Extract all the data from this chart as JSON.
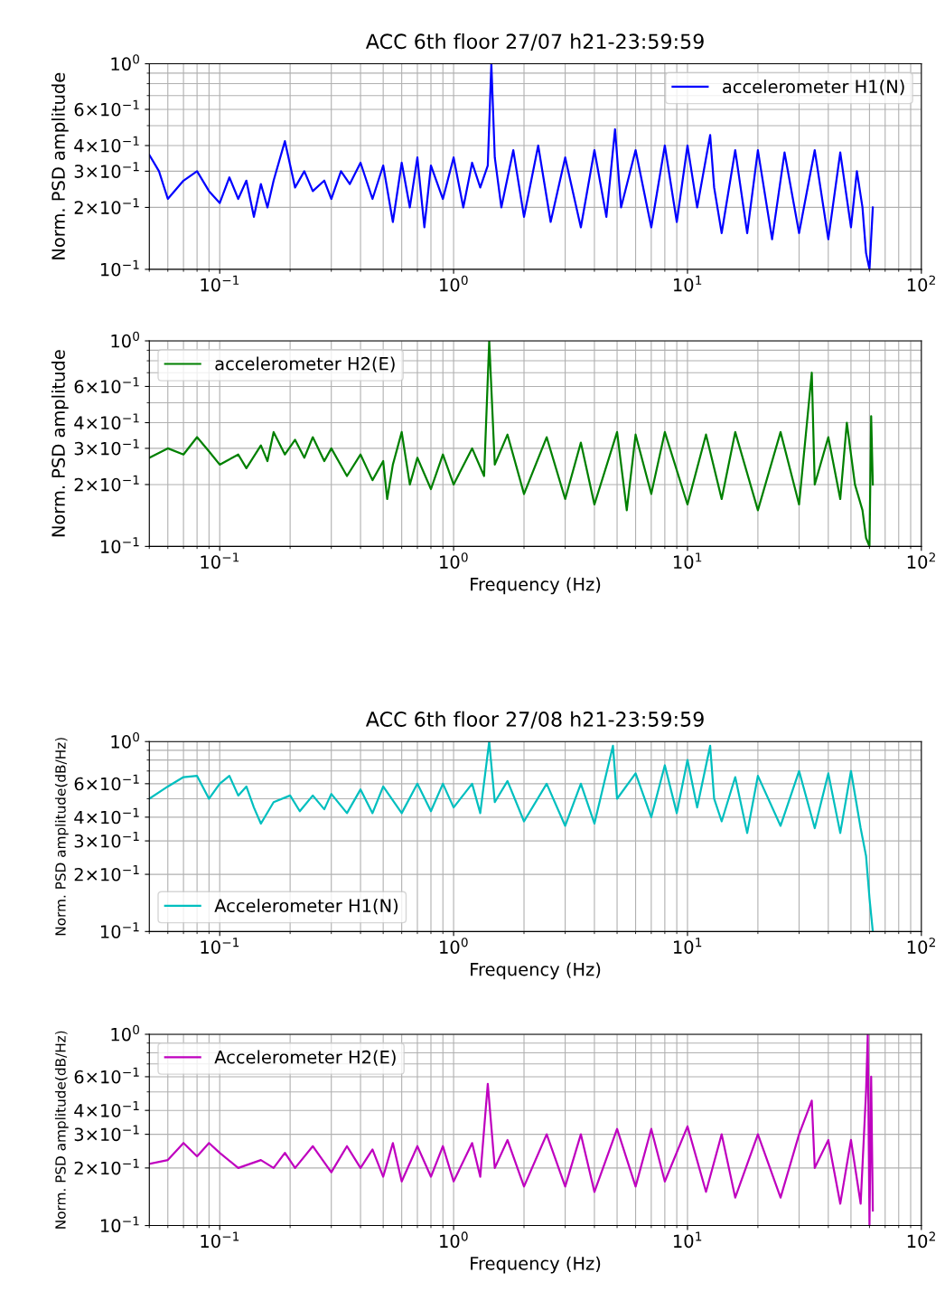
{
  "chart_data": [
    {
      "type": "line",
      "title": "ACC 6th floor 27/07 h21-23:59:59",
      "ylabel": "Norm. PSD amplitude",
      "log": "xy",
      "grid": true,
      "legend": "top right",
      "xlim": [
        0.05,
        100
      ],
      "ylim": [
        0.1,
        1
      ],
      "xticks": [
        {
          "value": 0.1,
          "label": "10$^{−1}$"
        },
        {
          "value": 1,
          "label": "10$^{0}$"
        },
        {
          "value": 10,
          "label": "10$^{1}$"
        },
        {
          "value": 100,
          "label": "10$^{2}$"
        }
      ],
      "yticks": [
        {
          "value": 0.1,
          "label": "10$^{−1}$"
        },
        {
          "value": 0.2,
          "label": "2×10$^{−1}$"
        },
        {
          "value": 0.3,
          "label": "3×10$^{−1}$"
        },
        {
          "value": 0.4,
          "label": "4×10$^{−1}$"
        },
        {
          "value": 0.6,
          "label": "6×10$^{−1}$"
        },
        {
          "value": 1,
          "label": "10$^{0}$"
        }
      ],
      "series": [
        {
          "name": "accelerometer H1(N)",
          "color": "#0000ff",
          "x": [
            0.05,
            0.055,
            0.06,
            0.07,
            0.08,
            0.09,
            0.1,
            0.11,
            0.12,
            0.13,
            0.14,
            0.15,
            0.16,
            0.17,
            0.19,
            0.21,
            0.23,
            0.25,
            0.28,
            0.3,
            0.33,
            0.36,
            0.4,
            0.45,
            0.5,
            0.55,
            0.6,
            0.65,
            0.7,
            0.75,
            0.8,
            0.9,
            1.0,
            1.1,
            1.2,
            1.3,
            1.4,
            1.45,
            1.5,
            1.6,
            1.8,
            2.0,
            2.3,
            2.6,
            3,
            3.5,
            4,
            4.5,
            4.9,
            5.2,
            6,
            7,
            8,
            9,
            10,
            11,
            12.5,
            13,
            14,
            16,
            18,
            20,
            23,
            26,
            30,
            35,
            40,
            45,
            50,
            53,
            56,
            58,
            60,
            62
          ],
          "values": [
            0.36,
            0.3,
            0.22,
            0.27,
            0.3,
            0.24,
            0.21,
            0.28,
            0.22,
            0.27,
            0.18,
            0.26,
            0.2,
            0.27,
            0.42,
            0.25,
            0.3,
            0.24,
            0.27,
            0.22,
            0.3,
            0.26,
            0.33,
            0.22,
            0.32,
            0.17,
            0.33,
            0.2,
            0.35,
            0.16,
            0.32,
            0.22,
            0.35,
            0.2,
            0.33,
            0.25,
            0.32,
            1.0,
            0.35,
            0.2,
            0.38,
            0.18,
            0.4,
            0.17,
            0.35,
            0.16,
            0.38,
            0.18,
            0.48,
            0.2,
            0.38,
            0.16,
            0.4,
            0.17,
            0.4,
            0.2,
            0.45,
            0.25,
            0.15,
            0.38,
            0.15,
            0.38,
            0.14,
            0.37,
            0.15,
            0.38,
            0.14,
            0.37,
            0.16,
            0.3,
            0.2,
            0.12,
            0.1,
            0.2
          ]
        }
      ]
    },
    {
      "type": "line",
      "xlabel": "Frequency (Hz)",
      "ylabel": "Norm. PSD amplitude",
      "log": "xy",
      "grid": true,
      "legend": "top left",
      "xlim": [
        0.05,
        100
      ],
      "ylim": [
        0.1,
        1
      ],
      "xticks": [
        {
          "value": 0.1,
          "label": "10$^{−1}$"
        },
        {
          "value": 1,
          "label": "10$^{0}$"
        },
        {
          "value": 10,
          "label": "10$^{1}$"
        },
        {
          "value": 100,
          "label": "10$^{2}$"
        }
      ],
      "yticks": [
        {
          "value": 0.1,
          "label": "10$^{−1}$"
        },
        {
          "value": 0.2,
          "label": "2×10$^{−1}$"
        },
        {
          "value": 0.3,
          "label": "3×10$^{−1}$"
        },
        {
          "value": 0.4,
          "label": "4×10$^{−1}$"
        },
        {
          "value": 0.6,
          "label": "6×10$^{−1}$"
        },
        {
          "value": 1,
          "label": "10$^{0}$"
        }
      ],
      "series": [
        {
          "name": "accelerometer H2(E)",
          "color": "#008000",
          "x": [
            0.05,
            0.06,
            0.07,
            0.08,
            0.09,
            0.1,
            0.12,
            0.13,
            0.15,
            0.16,
            0.17,
            0.19,
            0.21,
            0.23,
            0.25,
            0.28,
            0.3,
            0.35,
            0.4,
            0.45,
            0.5,
            0.52,
            0.55,
            0.6,
            0.65,
            0.7,
            0.8,
            0.9,
            1.0,
            1.2,
            1.35,
            1.42,
            1.5,
            1.7,
            2,
            2.5,
            3,
            3.5,
            4,
            5,
            5.5,
            6,
            7,
            8,
            10,
            12,
            14,
            16,
            20,
            25,
            30,
            34,
            35,
            40,
            45,
            48,
            52,
            56,
            58,
            60,
            61,
            62
          ],
          "values": [
            0.27,
            0.3,
            0.28,
            0.34,
            0.29,
            0.25,
            0.28,
            0.24,
            0.31,
            0.26,
            0.36,
            0.28,
            0.33,
            0.27,
            0.34,
            0.26,
            0.3,
            0.22,
            0.28,
            0.21,
            0.26,
            0.17,
            0.25,
            0.36,
            0.2,
            0.27,
            0.19,
            0.28,
            0.2,
            0.3,
            0.22,
            1.0,
            0.25,
            0.35,
            0.18,
            0.34,
            0.17,
            0.32,
            0.16,
            0.36,
            0.15,
            0.35,
            0.18,
            0.36,
            0.16,
            0.35,
            0.17,
            0.36,
            0.15,
            0.36,
            0.16,
            0.7,
            0.2,
            0.34,
            0.17,
            0.4,
            0.2,
            0.15,
            0.11,
            0.1,
            0.43,
            0.2
          ]
        }
      ]
    },
    {
      "type": "line",
      "title": "ACC 6th floor 27/08 h21-23:59:59",
      "xlabel": "Frequency (Hz)",
      "ylabel": "Norm. PSD amplitude(dB/Hz)",
      "log": "xy",
      "grid": true,
      "legend": "bottom left",
      "xlim": [
        0.05,
        100
      ],
      "ylim": [
        0.1,
        1
      ],
      "xticks": [
        {
          "value": 0.1,
          "label": "10$^{−1}$"
        },
        {
          "value": 1,
          "label": "10$^{0}$"
        },
        {
          "value": 10,
          "label": "10$^{1}$"
        },
        {
          "value": 100,
          "label": "10$^{2}$"
        }
      ],
      "yticks": [
        {
          "value": 0.1,
          "label": "10$^{−1}$"
        },
        {
          "value": 0.2,
          "label": "2×10$^{−1}$"
        },
        {
          "value": 0.3,
          "label": "3×10$^{−1}$"
        },
        {
          "value": 0.4,
          "label": "4×10$^{−1}$"
        },
        {
          "value": 0.6,
          "label": "6×10$^{−1}$"
        },
        {
          "value": 1,
          "label": "10$^{0}$"
        }
      ],
      "series": [
        {
          "name": "Accelerometer H1(N)",
          "color": "#00bfbf",
          "x": [
            0.05,
            0.06,
            0.07,
            0.08,
            0.09,
            0.1,
            0.11,
            0.12,
            0.13,
            0.14,
            0.15,
            0.17,
            0.2,
            0.22,
            0.25,
            0.28,
            0.3,
            0.35,
            0.4,
            0.45,
            0.5,
            0.6,
            0.7,
            0.8,
            0.9,
            1.0,
            1.2,
            1.3,
            1.42,
            1.5,
            1.7,
            2,
            2.5,
            3,
            3.5,
            4,
            4.8,
            5,
            6,
            7,
            8,
            9,
            10,
            11,
            12.5,
            13,
            14,
            16,
            18,
            20,
            25,
            30,
            35,
            40,
            45,
            50,
            55,
            58,
            60,
            62
          ],
          "values": [
            0.5,
            0.58,
            0.65,
            0.66,
            0.5,
            0.6,
            0.66,
            0.52,
            0.58,
            0.45,
            0.37,
            0.48,
            0.52,
            0.43,
            0.52,
            0.44,
            0.53,
            0.42,
            0.56,
            0.42,
            0.58,
            0.42,
            0.6,
            0.43,
            0.6,
            0.45,
            0.6,
            0.42,
            1.0,
            0.48,
            0.62,
            0.38,
            0.6,
            0.36,
            0.6,
            0.37,
            0.95,
            0.5,
            0.68,
            0.4,
            0.75,
            0.42,
            0.8,
            0.45,
            0.95,
            0.5,
            0.38,
            0.65,
            0.33,
            0.66,
            0.36,
            0.7,
            0.35,
            0.68,
            0.33,
            0.7,
            0.35,
            0.25,
            0.15,
            0.1
          ]
        }
      ]
    },
    {
      "type": "line",
      "xlabel": "Frequency (Hz)",
      "ylabel": "Norm. PSD amplitude(dB/Hz)",
      "log": "xy",
      "grid": true,
      "legend": "top left",
      "xlim": [
        0.05,
        100
      ],
      "ylim": [
        0.1,
        1
      ],
      "xticks": [
        {
          "value": 0.1,
          "label": "10$^{−1}$"
        },
        {
          "value": 1,
          "label": "10$^{0}$"
        },
        {
          "value": 10,
          "label": "10$^{1}$"
        },
        {
          "value": 100,
          "label": "10$^{2}$"
        }
      ],
      "yticks": [
        {
          "value": 0.1,
          "label": "10$^{−1}$"
        },
        {
          "value": 0.2,
          "label": "2×10$^{−1}$"
        },
        {
          "value": 0.3,
          "label": "3×10$^{−1}$"
        },
        {
          "value": 0.4,
          "label": "4×10$^{−1}$"
        },
        {
          "value": 0.6,
          "label": "6×10$^{−1}$"
        },
        {
          "value": 1,
          "label": "10$^{0}$"
        }
      ],
      "series": [
        {
          "name": "Accelerometer H2(E)",
          "color": "#bf00bf",
          "x": [
            0.05,
            0.06,
            0.07,
            0.08,
            0.09,
            0.1,
            0.12,
            0.15,
            0.17,
            0.19,
            0.21,
            0.25,
            0.3,
            0.35,
            0.4,
            0.45,
            0.5,
            0.55,
            0.6,
            0.7,
            0.8,
            0.9,
            1.0,
            1.2,
            1.3,
            1.4,
            1.5,
            1.7,
            2,
            2.5,
            3,
            3.5,
            4,
            5,
            6,
            7,
            8,
            10,
            12,
            14,
            16,
            20,
            25,
            30,
            34,
            35,
            40,
            45,
            50,
            55,
            58,
            59,
            60,
            61,
            62
          ],
          "values": [
            0.21,
            0.22,
            0.27,
            0.23,
            0.27,
            0.24,
            0.2,
            0.22,
            0.2,
            0.24,
            0.2,
            0.26,
            0.19,
            0.26,
            0.2,
            0.25,
            0.18,
            0.27,
            0.17,
            0.26,
            0.18,
            0.26,
            0.17,
            0.27,
            0.18,
            0.55,
            0.2,
            0.28,
            0.16,
            0.3,
            0.16,
            0.3,
            0.15,
            0.32,
            0.16,
            0.32,
            0.17,
            0.33,
            0.15,
            0.3,
            0.14,
            0.3,
            0.14,
            0.3,
            0.45,
            0.2,
            0.28,
            0.13,
            0.28,
            0.13,
            0.5,
            1.0,
            0.1,
            0.6,
            0.12
          ]
        }
      ]
    }
  ]
}
